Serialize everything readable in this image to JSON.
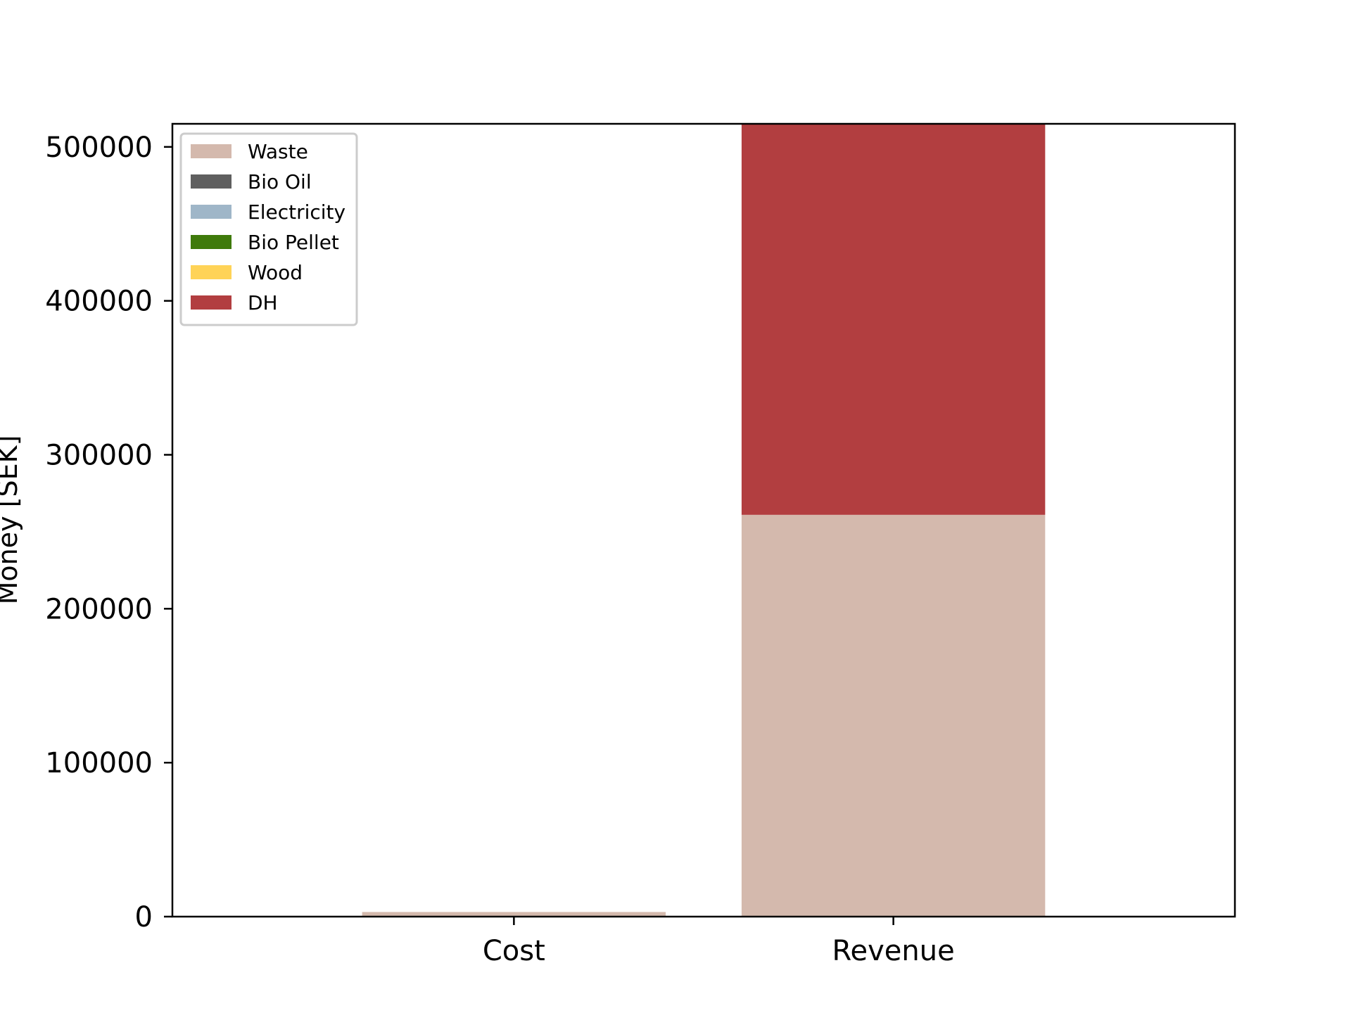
{
  "chart_data": {
    "type": "bar",
    "stacked": true,
    "categories": [
      "Cost",
      "Revenue"
    ],
    "ylabel": "Money [SEK]",
    "xlabel": "",
    "title": "",
    "ylim": [
      0,
      515000
    ],
    "yticks": [
      0,
      100000,
      200000,
      300000,
      400000,
      500000
    ],
    "legend_position": "upper-left",
    "series": [
      {
        "name": "Waste",
        "color": "#d4b9ad",
        "values": [
          3000,
          261000
        ]
      },
      {
        "name": "Bio Oil",
        "color": "#5f5f5f",
        "values": [
          0,
          0
        ]
      },
      {
        "name": "Electricity",
        "color": "#9fb6c8",
        "values": [
          0,
          0
        ]
      },
      {
        "name": "Bio Pellet",
        "color": "#3f7a0b",
        "values": [
          0,
          0
        ]
      },
      {
        "name": "Wood",
        "color": "#ffd357",
        "values": [
          0,
          0
        ]
      },
      {
        "name": "DH",
        "color": "#b23e40",
        "values": [
          0,
          254000
        ]
      }
    ]
  }
}
